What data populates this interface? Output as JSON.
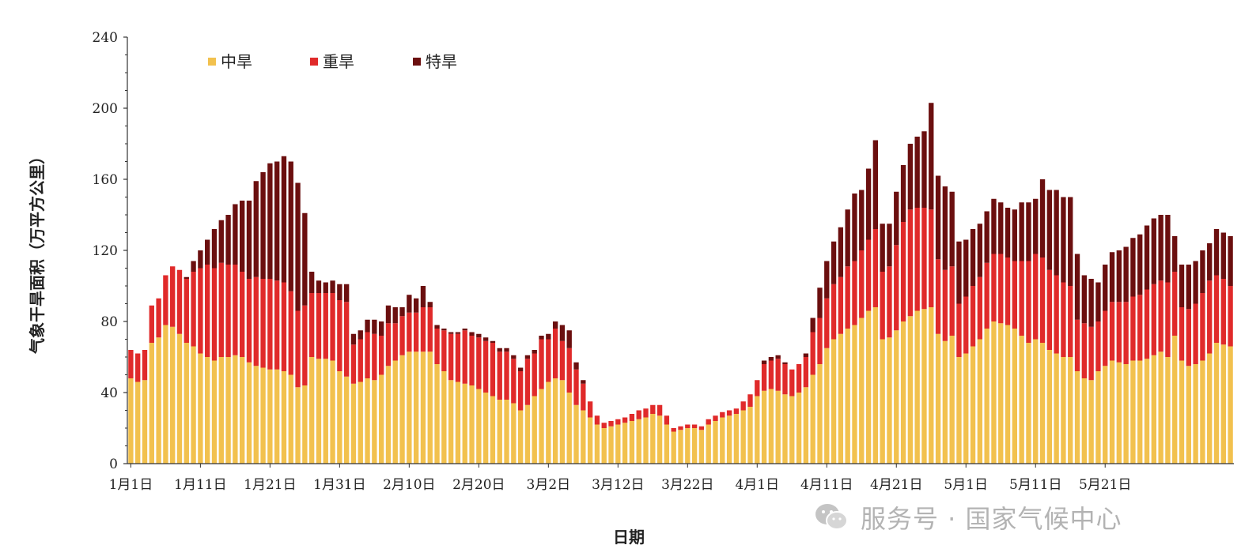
{
  "chart_data": {
    "type": "bar",
    "stacked": true,
    "title": "",
    "xlabel": "日期",
    "ylabel": "气象干旱面积（万平方公里）",
    "ylim": [
      0,
      240
    ],
    "yticks": [
      0,
      40,
      80,
      120,
      160,
      200,
      240
    ],
    "xtick_labels": [
      "1月1日",
      "1月11日",
      "1月21日",
      "1月31日",
      "2月10日",
      "2月20日",
      "3月2日",
      "3月12日",
      "3月22日",
      "4月1日",
      "4月11日",
      "4月21日",
      "5月1日",
      "5月11日",
      "5月21日"
    ],
    "xtick_every": 10,
    "legend_position": "top-left",
    "series": [
      {
        "name": "中旱",
        "color": "#f2c14e",
        "values": [
          48,
          46,
          47,
          68,
          71,
          78,
          77,
          73,
          68,
          66,
          62,
          60,
          58,
          60,
          60,
          61,
          60,
          57,
          55,
          54,
          53,
          53,
          52,
          50,
          43,
          44,
          60,
          59,
          59,
          58,
          52,
          49,
          45,
          46,
          48,
          47,
          50,
          55,
          58,
          61,
          63,
          63,
          63,
          63,
          56,
          52,
          47,
          46,
          45,
          44,
          42,
          40,
          38,
          36,
          36,
          34,
          30,
          33,
          38,
          42,
          46,
          48,
          47,
          40,
          33,
          30,
          26,
          22,
          20,
          21,
          22,
          23,
          24,
          25,
          26,
          28,
          27,
          22,
          18,
          19,
          20,
          20,
          19,
          22,
          24,
          26,
          27,
          28,
          30,
          32,
          38,
          41,
          42,
          41,
          39,
          38,
          40,
          43,
          50,
          56,
          65,
          70,
          73,
          76,
          78,
          82,
          86,
          88,
          70,
          71,
          75,
          80,
          83,
          86,
          87,
          88,
          73,
          69,
          72,
          60,
          62,
          66,
          70,
          76,
          80,
          79,
          78,
          76,
          72,
          68,
          70,
          68,
          64,
          62,
          60,
          60,
          52,
          48,
          47,
          52,
          55,
          58,
          57,
          56,
          58,
          58,
          59,
          61,
          63,
          60,
          72,
          58,
          55,
          56,
          58,
          62,
          68,
          67,
          66
        ],
        "colors": [
          "#f2c14e"
        ]
      },
      {
        "name": "重旱",
        "color": "#e02a2a",
        "values": [
          16,
          16,
          17,
          21,
          22,
          28,
          34,
          36,
          36,
          42,
          48,
          52,
          52,
          53,
          52,
          51,
          48,
          47,
          50,
          50,
          51,
          50,
          50,
          47,
          43,
          45,
          36,
          37,
          37,
          38,
          40,
          42,
          22,
          24,
          26,
          26,
          22,
          24,
          21,
          22,
          22,
          22,
          25,
          25,
          20,
          23,
          26,
          27,
          30,
          28,
          29,
          29,
          30,
          27,
          27,
          25,
          22,
          26,
          24,
          28,
          24,
          28,
          22,
          25,
          20,
          15,
          9,
          5,
          3,
          3,
          3,
          3,
          4,
          5,
          5,
          5,
          6,
          5,
          2,
          2,
          2,
          2,
          2,
          3,
          3,
          3,
          3,
          3,
          5,
          7,
          9,
          15,
          16,
          18,
          17,
          15,
          16,
          17,
          24,
          26,
          28,
          31,
          32,
          35,
          36,
          38,
          40,
          44,
          38,
          40,
          48,
          56,
          60,
          58,
          57,
          55,
          42,
          40,
          39,
          30,
          32,
          34,
          35,
          37,
          38,
          39,
          38,
          38,
          42,
          46,
          48,
          48,
          45,
          44,
          42,
          40,
          29,
          31,
          30,
          28,
          31,
          33,
          34,
          35,
          36,
          37,
          39,
          40,
          40,
          42,
          36,
          30,
          32,
          34,
          38,
          41,
          38,
          37,
          34
        ],
        "colors": [
          "#e02a2a"
        ]
      },
      {
        "name": "特旱",
        "color": "#6b0f0f",
        "values": [
          0,
          0,
          0,
          0,
          0,
          0,
          0,
          0,
          1,
          6,
          10,
          14,
          22,
          24,
          28,
          34,
          40,
          44,
          54,
          60,
          65,
          67,
          71,
          73,
          72,
          52,
          12,
          7,
          6,
          7,
          9,
          10,
          6,
          5,
          7,
          8,
          8,
          10,
          9,
          5,
          10,
          8,
          12,
          3,
          2,
          1,
          1,
          1,
          1,
          2,
          2,
          2,
          1,
          2,
          2,
          2,
          2,
          2,
          2,
          2,
          3,
          4,
          9,
          10,
          4,
          2,
          0,
          0,
          0,
          0,
          0,
          0,
          0,
          0,
          0,
          0,
          0,
          0,
          0,
          0,
          0,
          0,
          0,
          0,
          0,
          0,
          0,
          0,
          0,
          0,
          0,
          2,
          2,
          2,
          1,
          0,
          0,
          2,
          8,
          17,
          21,
          24,
          28,
          32,
          38,
          34,
          40,
          50,
          27,
          24,
          30,
          32,
          37,
          40,
          43,
          60,
          47,
          47,
          42,
          35,
          32,
          32,
          30,
          29,
          31,
          29,
          28,
          29,
          33,
          33,
          31,
          44,
          45,
          48,
          48,
          50,
          37,
          27,
          27,
          22,
          26,
          28,
          29,
          31,
          33,
          34,
          36,
          37,
          37,
          38,
          20,
          24,
          25,
          24,
          24,
          21,
          26,
          26,
          28
        ],
        "colors": [
          "#6b0f0f"
        ]
      }
    ]
  },
  "watermark": {
    "text": "服务号 · 国家气候中心",
    "icon": "wechat-icon"
  }
}
